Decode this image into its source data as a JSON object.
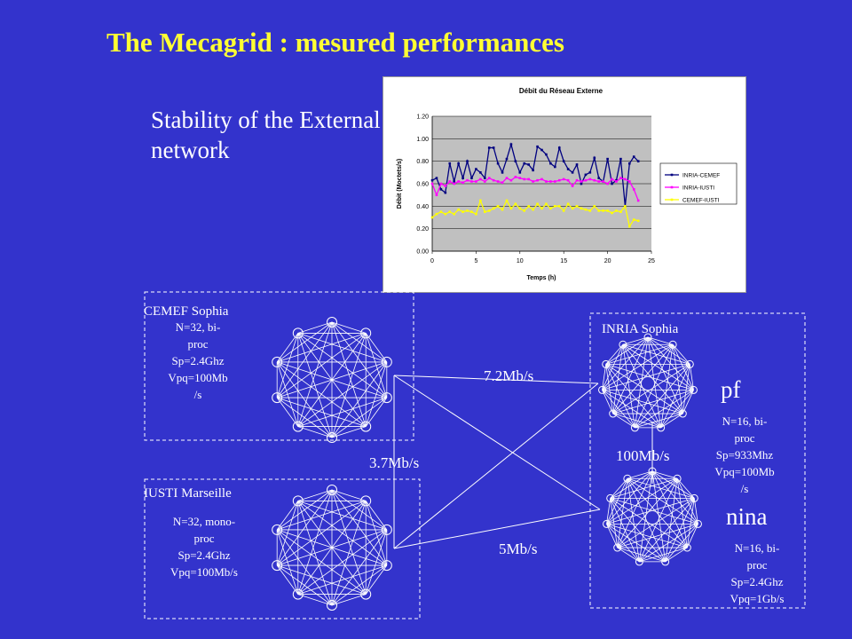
{
  "slide": {
    "title": "The Mecagrid : mesured  performances",
    "subtitle": "Stability of the External network"
  },
  "sites": {
    "cemef": {
      "name": "CEMEF Sophia",
      "spec": [
        "N=32, bi-",
        "proc",
        "Sp=2.4Ghz",
        "Vpq=100Mb",
        "/s"
      ]
    },
    "iusti": {
      "name": "IUSTI Marseille",
      "spec": [
        "N=32, mono-",
        "proc",
        "Sp=2.4Ghz",
        "Vpq=100Mb/s"
      ]
    },
    "inria": {
      "name": "INRIA Sophia"
    },
    "pf": {
      "name": "pf",
      "spec": [
        "N=16, bi-",
        "proc",
        "Sp=933Mhz",
        "Vpq=100Mb",
        "/s"
      ]
    },
    "nina": {
      "name": "nina",
      "spec": [
        "N=16, bi-",
        "proc",
        "Sp=2.4Ghz",
        "Vpq=1Gb/s"
      ]
    }
  },
  "links": {
    "cemef_inria": "7.2Mb/s",
    "cemef_iusti": "3.7Mb/s",
    "pf_nina": "100Mb/s",
    "iusti_inria": "5Mb/s"
  },
  "colors": {
    "background": "#3333cc",
    "title": "#ffff33"
  },
  "chart_data": {
    "type": "line",
    "title": "Débit du Réseau Externe",
    "xlabel": "Temps (h)",
    "ylabel": "Débit (Moctets/s)",
    "xlim": [
      0,
      25
    ],
    "ylim": [
      0,
      1.2
    ],
    "xticks": [
      "0",
      "5",
      "10",
      "15",
      "20",
      "25"
    ],
    "yticks": [
      "0.00",
      "0.20",
      "0.40",
      "0.60",
      "0.80",
      "1.00",
      "1.20"
    ],
    "grid": true,
    "legend": "right",
    "series": [
      {
        "name": "INRIA-CEMEF",
        "color": "#000080",
        "x": [
          0,
          0.5,
          1,
          1.5,
          2,
          2.5,
          3,
          3.5,
          4,
          4.5,
          5,
          5.5,
          6,
          6.5,
          7,
          7.5,
          8,
          8.5,
          9,
          9.5,
          10,
          10.5,
          11,
          11.5,
          12,
          12.5,
          13,
          13.5,
          14,
          14.5,
          15,
          15.5,
          16,
          16.5,
          17,
          17.5,
          18,
          18.5,
          19,
          19.5,
          20,
          20.5,
          21,
          21.5,
          22,
          22.5,
          23,
          23.5
        ],
        "y": [
          0.63,
          0.65,
          0.55,
          0.52,
          0.78,
          0.62,
          0.78,
          0.65,
          0.8,
          0.65,
          0.73,
          0.7,
          0.65,
          0.92,
          0.92,
          0.78,
          0.7,
          0.82,
          0.95,
          0.8,
          0.7,
          0.78,
          0.77,
          0.72,
          0.93,
          0.9,
          0.86,
          0.78,
          0.75,
          0.92,
          0.8,
          0.73,
          0.7,
          0.77,
          0.6,
          0.68,
          0.7,
          0.83,
          0.65,
          0.62,
          0.82,
          0.6,
          0.63,
          0.82,
          0.4,
          0.78,
          0.84,
          0.8
        ]
      },
      {
        "name": "INRIA-IUSTI",
        "color": "#ff00ff",
        "x": [
          0,
          0.5,
          1,
          1.5,
          2,
          2.5,
          3,
          3.5,
          4,
          4.5,
          5,
          5.5,
          6,
          6.5,
          7,
          7.5,
          8,
          8.5,
          9,
          9.5,
          10,
          10.5,
          11,
          11.5,
          12,
          12.5,
          13,
          13.5,
          14,
          14.5,
          15,
          15.5,
          16,
          16.5,
          17,
          17.5,
          18,
          18.5,
          19,
          19.5,
          20,
          20.5,
          21,
          21.5,
          22,
          22.5,
          23,
          23.5
        ],
        "y": [
          0.6,
          0.5,
          0.6,
          0.58,
          0.62,
          0.6,
          0.62,
          0.61,
          0.63,
          0.62,
          0.62,
          0.64,
          0.62,
          0.65,
          0.63,
          0.62,
          0.61,
          0.65,
          0.63,
          0.66,
          0.65,
          0.64,
          0.64,
          0.62,
          0.63,
          0.64,
          0.62,
          0.62,
          0.62,
          0.63,
          0.64,
          0.63,
          0.58,
          0.63,
          0.62,
          0.63,
          0.64,
          0.63,
          0.62,
          0.62,
          0.6,
          0.64,
          0.62,
          0.65,
          0.64,
          0.62,
          0.55,
          0.45
        ]
      },
      {
        "name": "CEMEF-IUSTI",
        "color": "#ffff00",
        "x": [
          0,
          0.5,
          1,
          1.5,
          2,
          2.5,
          3,
          3.5,
          4,
          4.5,
          5,
          5.5,
          6,
          6.5,
          7,
          7.5,
          8,
          8.5,
          9,
          9.5,
          10,
          10.5,
          11,
          11.5,
          12,
          12.5,
          13,
          13.5,
          14,
          14.5,
          15,
          15.5,
          16,
          16.5,
          17,
          17.5,
          18,
          18.5,
          19,
          19.5,
          20,
          20.5,
          21,
          21.5,
          22,
          22.5,
          23,
          23.5
        ],
        "y": [
          0.3,
          0.33,
          0.35,
          0.33,
          0.35,
          0.33,
          0.37,
          0.35,
          0.36,
          0.35,
          0.33,
          0.45,
          0.35,
          0.36,
          0.38,
          0.4,
          0.37,
          0.45,
          0.38,
          0.42,
          0.38,
          0.36,
          0.4,
          0.37,
          0.42,
          0.38,
          0.42,
          0.38,
          0.4,
          0.4,
          0.36,
          0.42,
          0.38,
          0.4,
          0.38,
          0.37,
          0.36,
          0.4,
          0.36,
          0.36,
          0.36,
          0.34,
          0.36,
          0.35,
          0.4,
          0.22,
          0.28,
          0.27
        ]
      }
    ]
  }
}
